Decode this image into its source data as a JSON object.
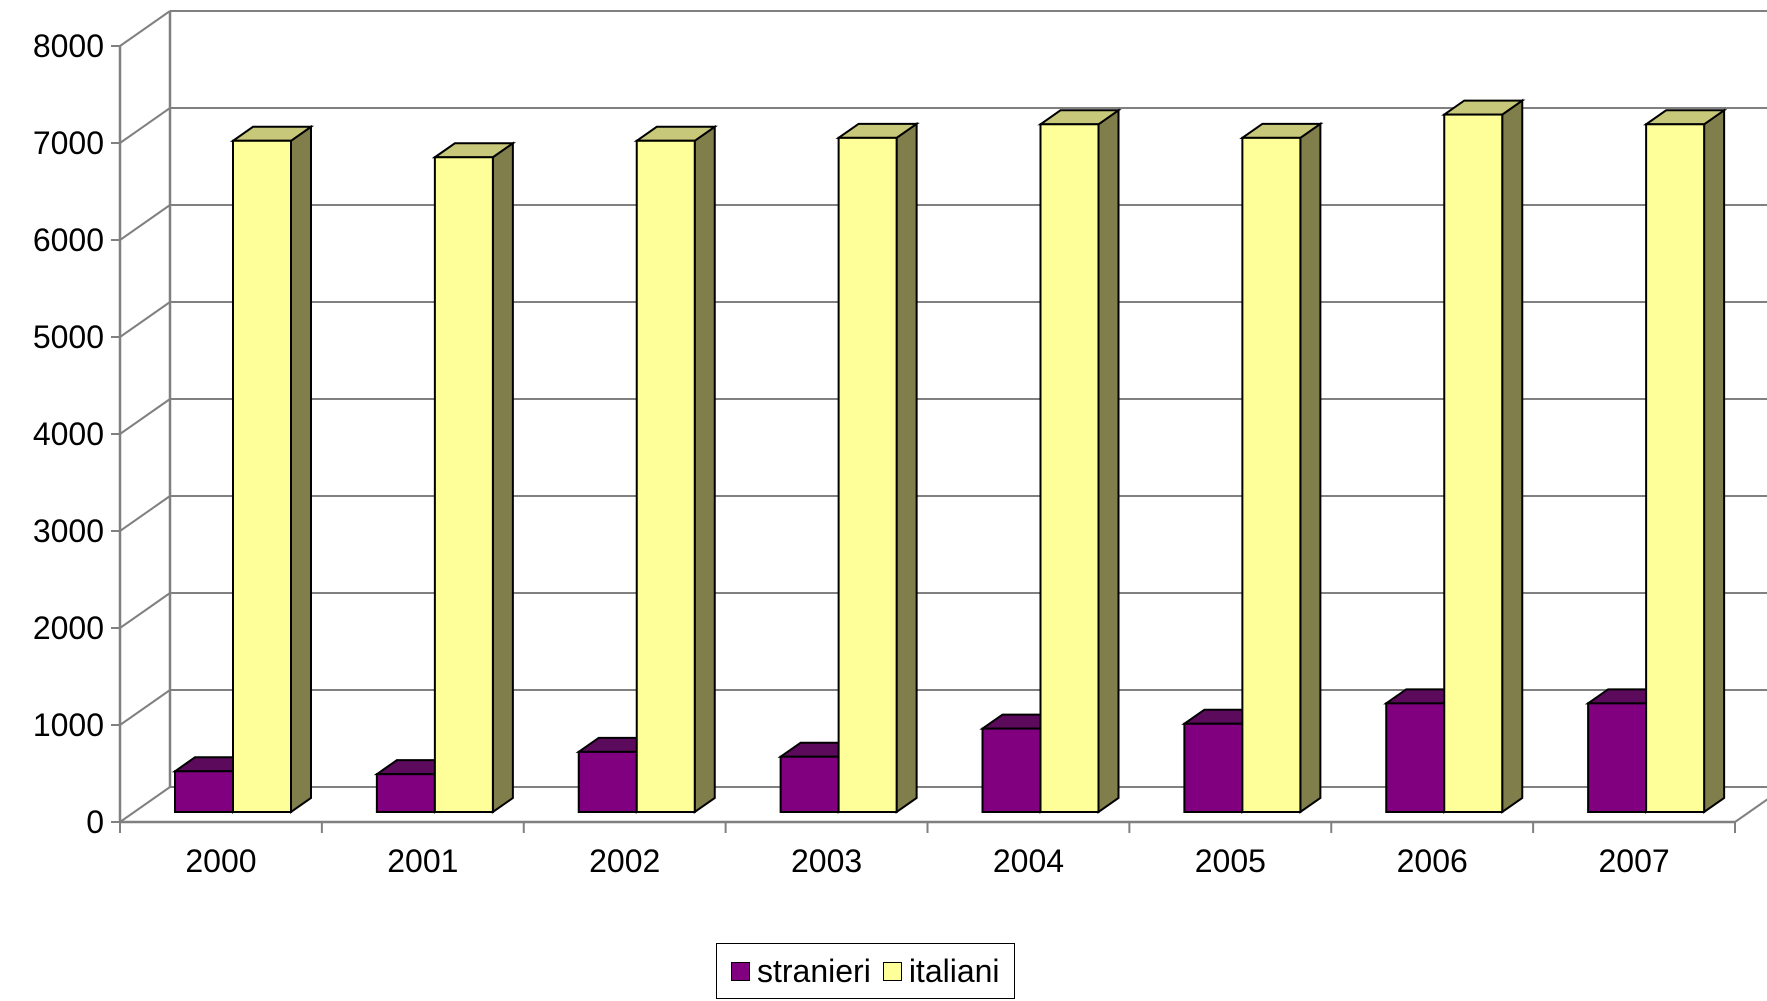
{
  "chart_data": {
    "type": "bar",
    "title": "",
    "xlabel": "",
    "ylabel": "",
    "categories": [
      "2000",
      "2001",
      "2002",
      "2003",
      "2004",
      "2005",
      "2006",
      "2007"
    ],
    "series": [
      {
        "name": "stranieri",
        "values": [
          420,
          390,
          620,
          570,
          860,
          910,
          1120,
          1120
        ],
        "color": "#800080"
      },
      {
        "name": "italiani",
        "values": [
          6920,
          6750,
          6920,
          6950,
          7090,
          6950,
          7190,
          7090
        ],
        "color": "#FFFF99"
      }
    ],
    "ylim": [
      0,
      8000
    ],
    "yticks": [
      "0",
      "1000",
      "2000",
      "3000",
      "4000",
      "5000",
      "6000",
      "7000",
      "8000"
    ],
    "grid": true,
    "legend_position": "bottom",
    "style": "3d-clustered-column"
  }
}
